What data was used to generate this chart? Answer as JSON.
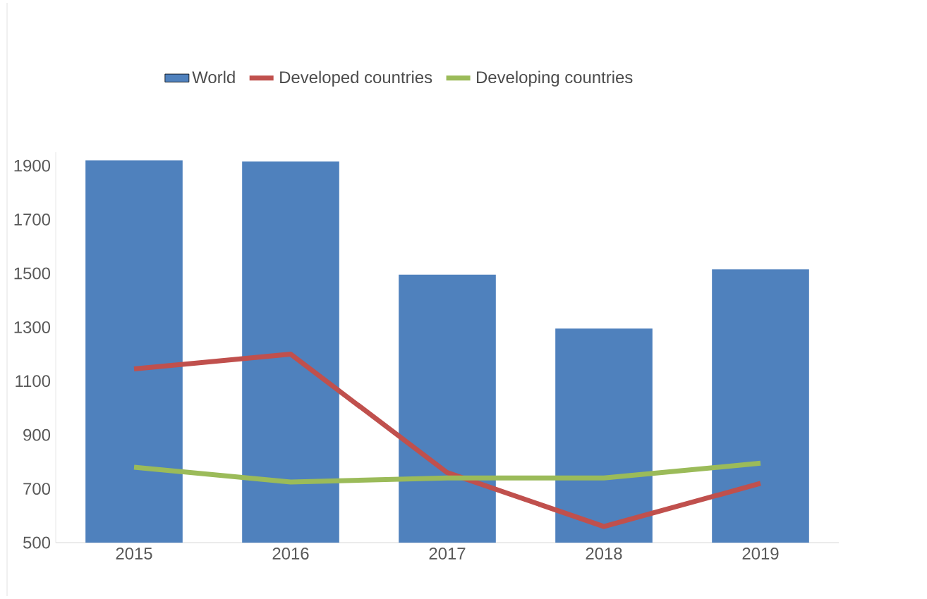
{
  "chart_data": {
    "type": "bar",
    "categories": [
      "2015",
      "2016",
      "2017",
      "2018",
      "2019"
    ],
    "series": [
      {
        "name": "World",
        "color": "#4f81bd",
        "values": [
          1920,
          1915,
          1495,
          1295,
          1515
        ]
      },
      {
        "name": "Developed countries",
        "type": "line",
        "color": "#c0504d",
        "values": [
          1145,
          1200,
          760,
          560,
          720
        ]
      },
      {
        "name": "Developing countries",
        "type": "line",
        "color": "#9bbb59",
        "values": [
          780,
          725,
          740,
          740,
          795
        ]
      }
    ],
    "ylim": [
      500,
      1950
    ],
    "yticks": [
      500,
      700,
      900,
      1100,
      1300,
      1500,
      1700,
      1900
    ],
    "grid": false,
    "legend": "top",
    "marker": "none",
    "line_style": "solid"
  }
}
